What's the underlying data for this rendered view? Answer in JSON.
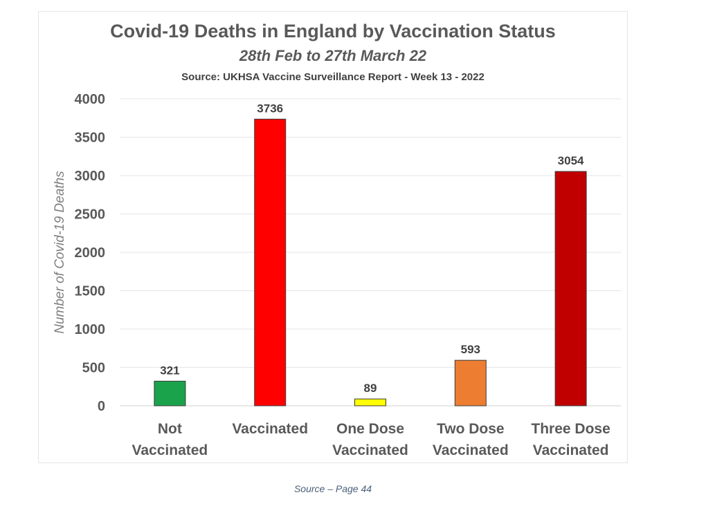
{
  "chart_data": {
    "type": "bar",
    "title": "Covid-19 Deaths in England by Vaccination Status",
    "subtitle": "28th Feb to 27th March 22",
    "source_line": "Source: UKHSA Vaccine Surveillance Report - Week 13 - 2022",
    "ylabel": "Number of Covid-19 Deaths",
    "xlabel": "",
    "ylim": [
      0,
      4000
    ],
    "yticks": [
      0,
      500,
      1000,
      1500,
      2000,
      2500,
      3000,
      3500,
      4000
    ],
    "grid": true,
    "categories": [
      [
        "Not",
        "Vaccinated"
      ],
      [
        "Vaccinated"
      ],
      [
        "One Dose",
        "Vaccinated"
      ],
      [
        "Two Dose",
        "Vaccinated"
      ],
      [
        "Three Dose",
        "Vaccinated"
      ]
    ],
    "values": [
      321,
      3736,
      89,
      593,
      3054
    ],
    "colors": [
      "#1aa34a",
      "#ff0000",
      "#ffff00",
      "#ed7d31",
      "#c00000"
    ]
  },
  "caption": "Source – Page 44"
}
